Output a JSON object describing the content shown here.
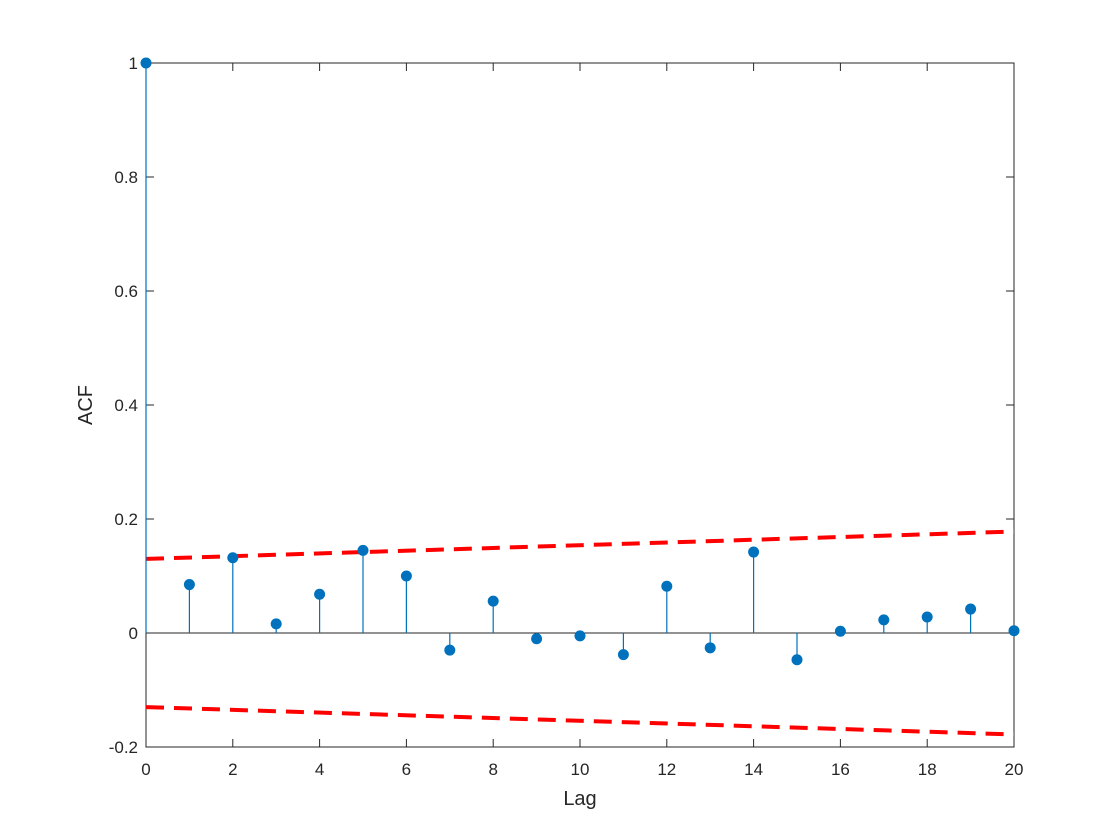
{
  "chart_data": {
    "type": "stem",
    "title": "",
    "xlabel": "Lag",
    "ylabel": "ACF",
    "xlim": [
      0,
      20
    ],
    "ylim": [
      -0.2,
      1
    ],
    "xticks": [
      0,
      2,
      4,
      6,
      8,
      10,
      12,
      14,
      16,
      18,
      20
    ],
    "yticks": [
      -0.2,
      0,
      0.2,
      0.4,
      0.6,
      0.8,
      1
    ],
    "ytick_labels": [
      "-0.2",
      "0",
      "0.2",
      "0.4",
      "0.6",
      "0.8",
      "1"
    ],
    "grid": false,
    "box": true,
    "series": [
      {
        "lags": [
          0,
          1,
          2,
          3,
          4,
          5,
          6,
          7,
          8,
          9,
          10,
          11,
          12,
          13,
          14,
          15,
          16,
          17,
          18,
          19,
          20
        ],
        "values": [
          1.0,
          0.085,
          0.132,
          0.016,
          0.068,
          0.145,
          0.1,
          -0.03,
          0.056,
          -0.01,
          -0.005,
          -0.038,
          0.082,
          -0.026,
          0.142,
          -0.047,
          0.003,
          0.023,
          0.028,
          0.042,
          0.004
        ],
        "color": "#0072BD"
      }
    ],
    "confidence_bounds": {
      "upper": {
        "x": [
          0,
          20
        ],
        "y": [
          0.13,
          0.178
        ]
      },
      "lower": {
        "x": [
          0,
          20
        ],
        "y": [
          -0.13,
          -0.178
        ]
      },
      "color": "#FF0000",
      "style": "dashed"
    }
  }
}
